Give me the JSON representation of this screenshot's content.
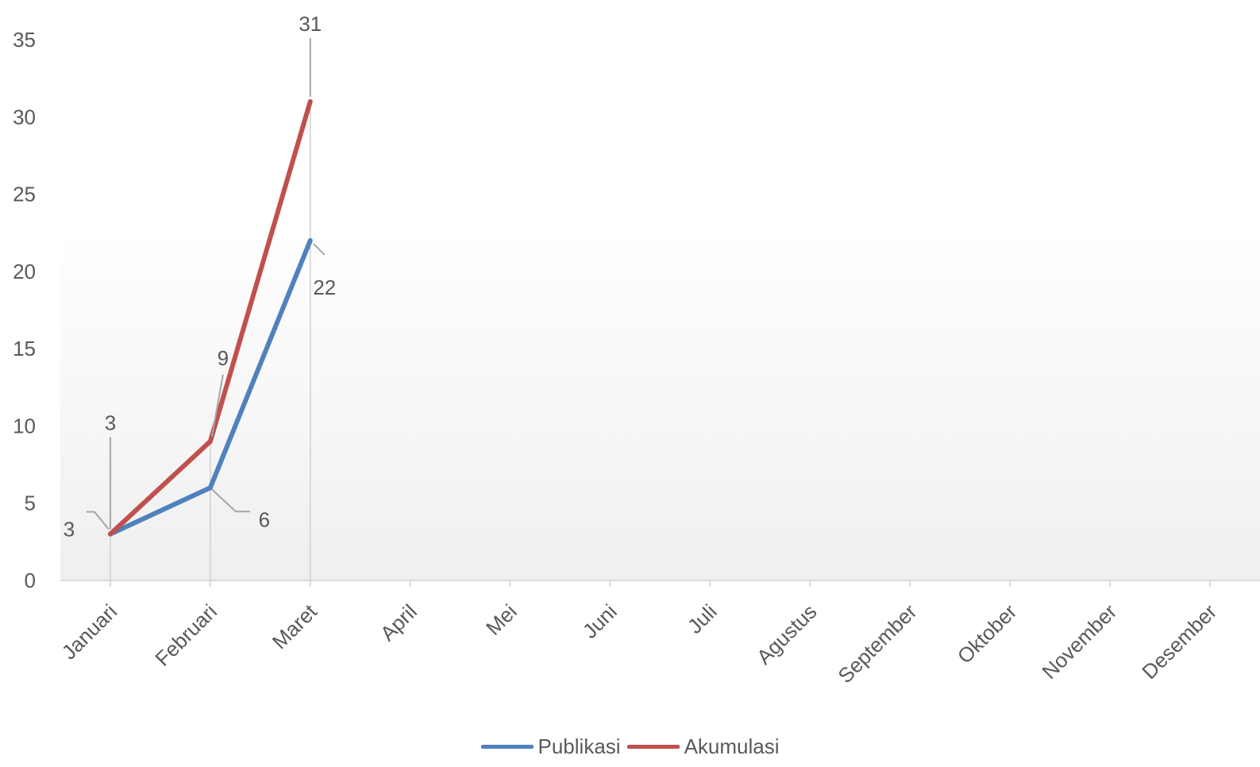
{
  "chart_data": {
    "type": "line",
    "title": "",
    "xlabel": "",
    "ylabel": "",
    "categories": [
      "Januari",
      "Februari",
      "Maret",
      "April",
      "Mei",
      "Juni",
      "Juli",
      "Agustus",
      "September",
      "Oktober",
      "November",
      "Desember"
    ],
    "ylim": [
      0,
      35
    ],
    "yticks": [
      0,
      5,
      10,
      15,
      20,
      25,
      30,
      35
    ],
    "grid": false,
    "legend_position": "bottom",
    "series": [
      {
        "name": "Publikasi",
        "color": "#4F81BD",
        "values": [
          3,
          6,
          22,
          null,
          null,
          null,
          null,
          null,
          null,
          null,
          null,
          null
        ]
      },
      {
        "name": "Akumulasi",
        "color": "#C0504D",
        "values": [
          3,
          9,
          31,
          null,
          null,
          null,
          null,
          null,
          null,
          null,
          null,
          null
        ]
      }
    ]
  }
}
